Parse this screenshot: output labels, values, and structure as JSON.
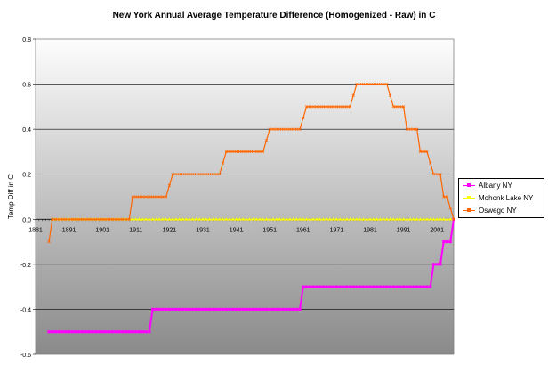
{
  "chart_data": {
    "type": "line",
    "title": "New York Annual Average Temperature Difference (Homogenized - Raw) in C",
    "xlabel": "",
    "ylabel": "Temp Diff in C",
    "ylim": [
      -0.6,
      0.8
    ],
    "yticks": [
      -0.6,
      -0.4,
      -0.2,
      0.0,
      0.2,
      0.4,
      0.6,
      0.8
    ],
    "ytick_labels": [
      "-0.6",
      "-0.4",
      "-0.2",
      "0.0",
      "0.2",
      "0.4",
      "0.6",
      "0.8"
    ],
    "xlim": [
      1881,
      2006
    ],
    "xtick_labels": [
      "1881",
      "1891",
      "1901",
      "1911",
      "1921",
      "1931",
      "1941",
      "1951",
      "1961",
      "1971",
      "1981",
      "1991",
      "2001"
    ],
    "grid": true,
    "legend_position": "right",
    "series": [
      {
        "name": "Albany NY",
        "color": "#ff00ff",
        "marker": "square",
        "points": [
          [
            1885,
            -0.5
          ],
          [
            1915,
            -0.5
          ],
          [
            1916,
            -0.4
          ],
          [
            1960,
            -0.4
          ],
          [
            1961,
            -0.3
          ],
          [
            1999,
            -0.3
          ],
          [
            2000,
            -0.2
          ],
          [
            2002,
            -0.2
          ],
          [
            2003,
            -0.1
          ],
          [
            2005,
            -0.1
          ],
          [
            2006,
            0.0
          ]
        ]
      },
      {
        "name": "Mohonk Lake NY",
        "color": "#ffff00",
        "marker": "triangle",
        "points": [
          [
            1886,
            0.0
          ],
          [
            2006,
            0.0
          ]
        ]
      },
      {
        "name": "Oswego NY",
        "color": "#ff6600",
        "marker": "x",
        "points": [
          [
            1885,
            -0.1
          ],
          [
            1886,
            0.0
          ],
          [
            1909,
            0.0
          ],
          [
            1910,
            0.1
          ],
          [
            1920,
            0.1
          ],
          [
            1922,
            0.2
          ],
          [
            1936,
            0.2
          ],
          [
            1938,
            0.3
          ],
          [
            1949,
            0.3
          ],
          [
            1951,
            0.4
          ],
          [
            1960,
            0.4
          ],
          [
            1962,
            0.5
          ],
          [
            1975,
            0.5
          ],
          [
            1977,
            0.6
          ],
          [
            1986,
            0.6
          ],
          [
            1988,
            0.5
          ],
          [
            1991,
            0.5
          ],
          [
            1992,
            0.4
          ],
          [
            1995,
            0.4
          ],
          [
            1996,
            0.3
          ],
          [
            1998,
            0.3
          ],
          [
            2000,
            0.2
          ],
          [
            2002,
            0.2
          ],
          [
            2003,
            0.1
          ],
          [
            2004,
            0.1
          ],
          [
            2005,
            0.05
          ],
          [
            2006,
            0.0
          ]
        ]
      }
    ]
  }
}
